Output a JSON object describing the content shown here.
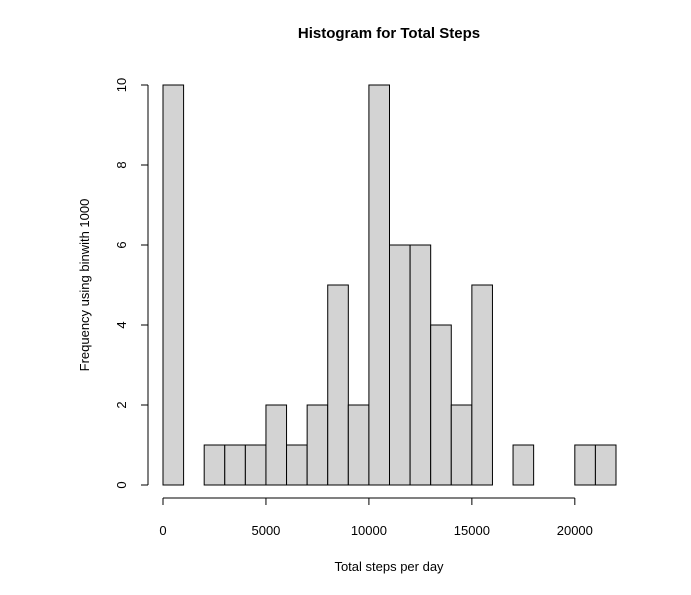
{
  "chart_data": {
    "type": "bar",
    "title": "Histogram for Total Steps",
    "xlabel": "Total steps per day",
    "ylabel": "Frequency using binwith 1000",
    "bin_width": 1000,
    "bins": [
      {
        "start": 0,
        "end": 1000,
        "count": 10
      },
      {
        "start": 1000,
        "end": 2000,
        "count": 0
      },
      {
        "start": 2000,
        "end": 3000,
        "count": 1
      },
      {
        "start": 3000,
        "end": 4000,
        "count": 1
      },
      {
        "start": 4000,
        "end": 5000,
        "count": 1
      },
      {
        "start": 5000,
        "end": 6000,
        "count": 2
      },
      {
        "start": 6000,
        "end": 7000,
        "count": 1
      },
      {
        "start": 7000,
        "end": 8000,
        "count": 2
      },
      {
        "start": 8000,
        "end": 9000,
        "count": 5
      },
      {
        "start": 9000,
        "end": 10000,
        "count": 2
      },
      {
        "start": 10000,
        "end": 11000,
        "count": 10
      },
      {
        "start": 11000,
        "end": 12000,
        "count": 6
      },
      {
        "start": 12000,
        "end": 13000,
        "count": 6
      },
      {
        "start": 13000,
        "end": 14000,
        "count": 4
      },
      {
        "start": 14000,
        "end": 15000,
        "count": 2
      },
      {
        "start": 15000,
        "end": 16000,
        "count": 5
      },
      {
        "start": 16000,
        "end": 17000,
        "count": 0
      },
      {
        "start": 17000,
        "end": 18000,
        "count": 1
      },
      {
        "start": 18000,
        "end": 19000,
        "count": 0
      },
      {
        "start": 19000,
        "end": 20000,
        "count": 0
      },
      {
        "start": 20000,
        "end": 21000,
        "count": 1
      },
      {
        "start": 21000,
        "end": 22000,
        "count": 1
      }
    ],
    "xlim": [
      0,
      22000
    ],
    "ylim": [
      0,
      10
    ],
    "x_ticks": [
      0,
      5000,
      10000,
      15000,
      20000
    ],
    "x_tick_labels": [
      "0",
      "5000",
      "10000",
      "15000",
      "20000"
    ],
    "y_ticks": [
      0,
      2,
      4,
      6,
      8,
      10
    ],
    "y_tick_labels": [
      "0",
      "2",
      "4",
      "6",
      "8",
      "10"
    ],
    "grid": false,
    "legend": "none",
    "colors": {
      "bar_fill": "#d3d3d3",
      "bar_stroke": "#000000"
    }
  }
}
